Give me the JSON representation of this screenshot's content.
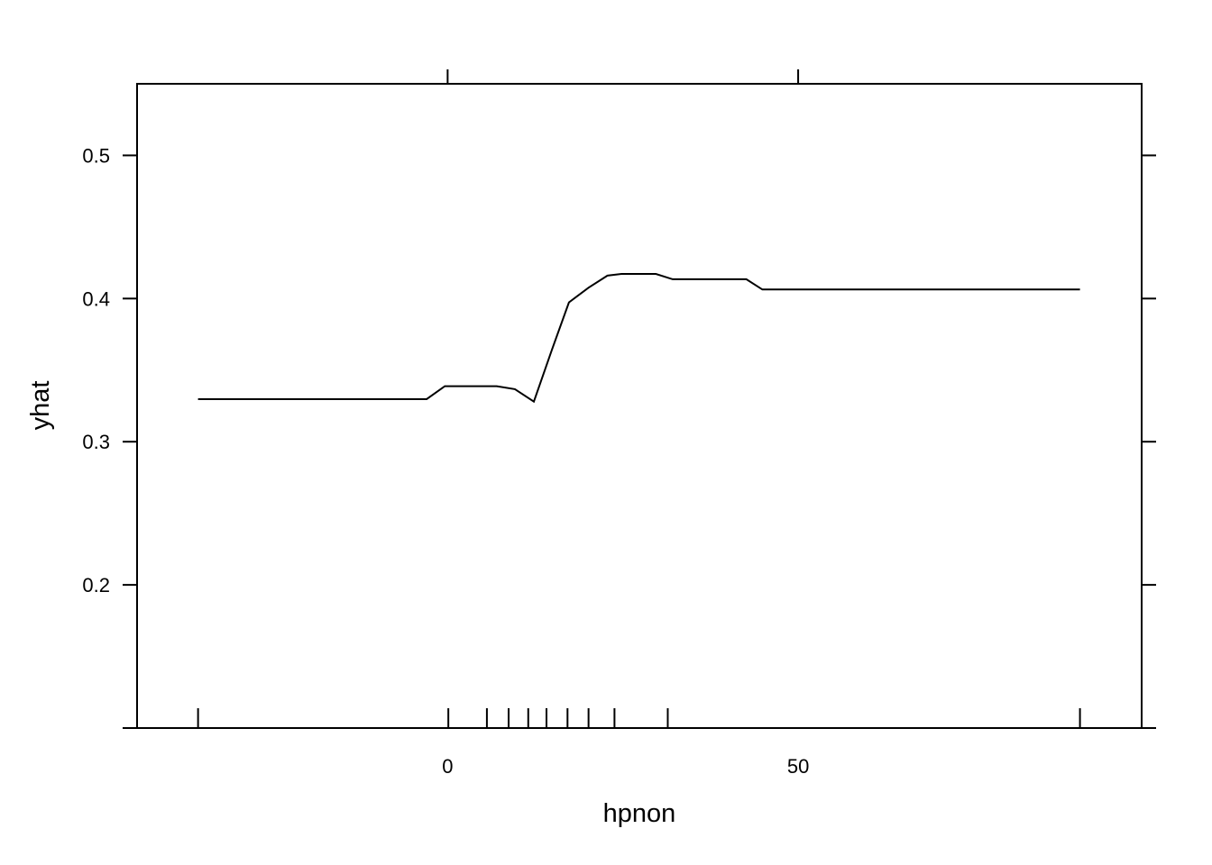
{
  "chart_data": {
    "type": "line",
    "title": "",
    "xlabel": "hpnon",
    "ylabel": "yhat",
    "xlim": [
      -44.3,
      99
    ],
    "ylim": [
      0.1,
      0.55
    ],
    "x_ticks": [
      0,
      50
    ],
    "x_tick_labels": [
      "0",
      "50"
    ],
    "y_ticks": [
      0.2,
      0.3,
      0.4,
      0.5
    ],
    "y_tick_labels": [
      "0.2",
      "0.3",
      "0.4",
      "0.5"
    ],
    "grid": false,
    "legend": "none",
    "line_color": "#000000",
    "series": [
      {
        "x": [
          -35.6,
          -3.0,
          -0.4,
          7.0,
          9.6,
          12.3,
          14.9,
          17.3,
          20.1,
          22.8,
          24.8,
          29.7,
          32.1,
          42.6,
          44.9,
          90.2
        ],
        "y": [
          0.3297,
          0.3297,
          0.3388,
          0.3388,
          0.3367,
          0.328,
          0.3645,
          0.3973,
          0.4076,
          0.416,
          0.4172,
          0.4172,
          0.4135,
          0.4135,
          0.4063,
          0.4063
        ]
      }
    ],
    "rug_x": [
      -35.6,
      0.1,
      5.6,
      8.7,
      11.5,
      14.1,
      17.1,
      20.1,
      23.8,
      31.4,
      90.2
    ]
  }
}
